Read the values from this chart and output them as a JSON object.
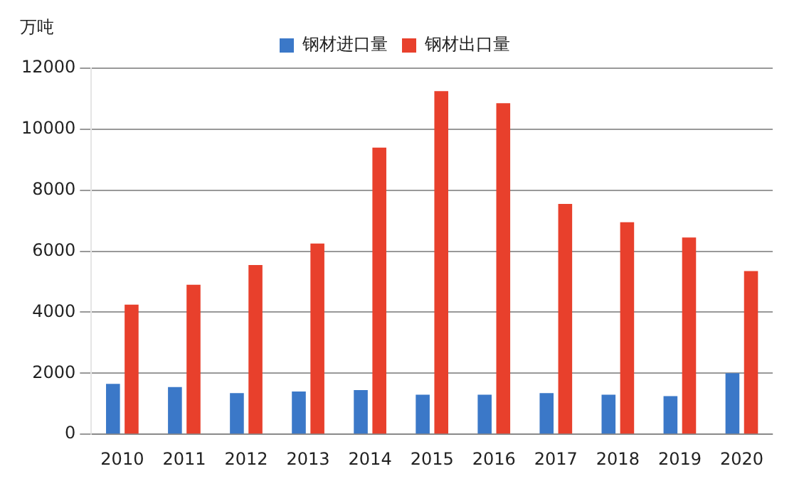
{
  "chart_data": {
    "type": "bar",
    "ylabel": "万吨",
    "categories": [
      "2010",
      "2011",
      "2012",
      "2013",
      "2014",
      "2015",
      "2016",
      "2017",
      "2018",
      "2019",
      "2020"
    ],
    "series": [
      {
        "name": "钢材进口量",
        "color": "#3b78c8",
        "values": [
          1650,
          1550,
          1350,
          1400,
          1450,
          1300,
          1300,
          1350,
          1300,
          1250,
          2000
        ]
      },
      {
        "name": "钢材出口量",
        "color": "#e8402c",
        "values": [
          4250,
          4900,
          5550,
          6250,
          9400,
          11250,
          10850,
          7550,
          6950,
          6450,
          5350
        ]
      }
    ],
    "ylim": [
      0,
      12000
    ],
    "yticks": [
      0,
      2000,
      4000,
      6000,
      8000,
      10000,
      12000
    ],
    "grid": "y",
    "legend": "top"
  }
}
